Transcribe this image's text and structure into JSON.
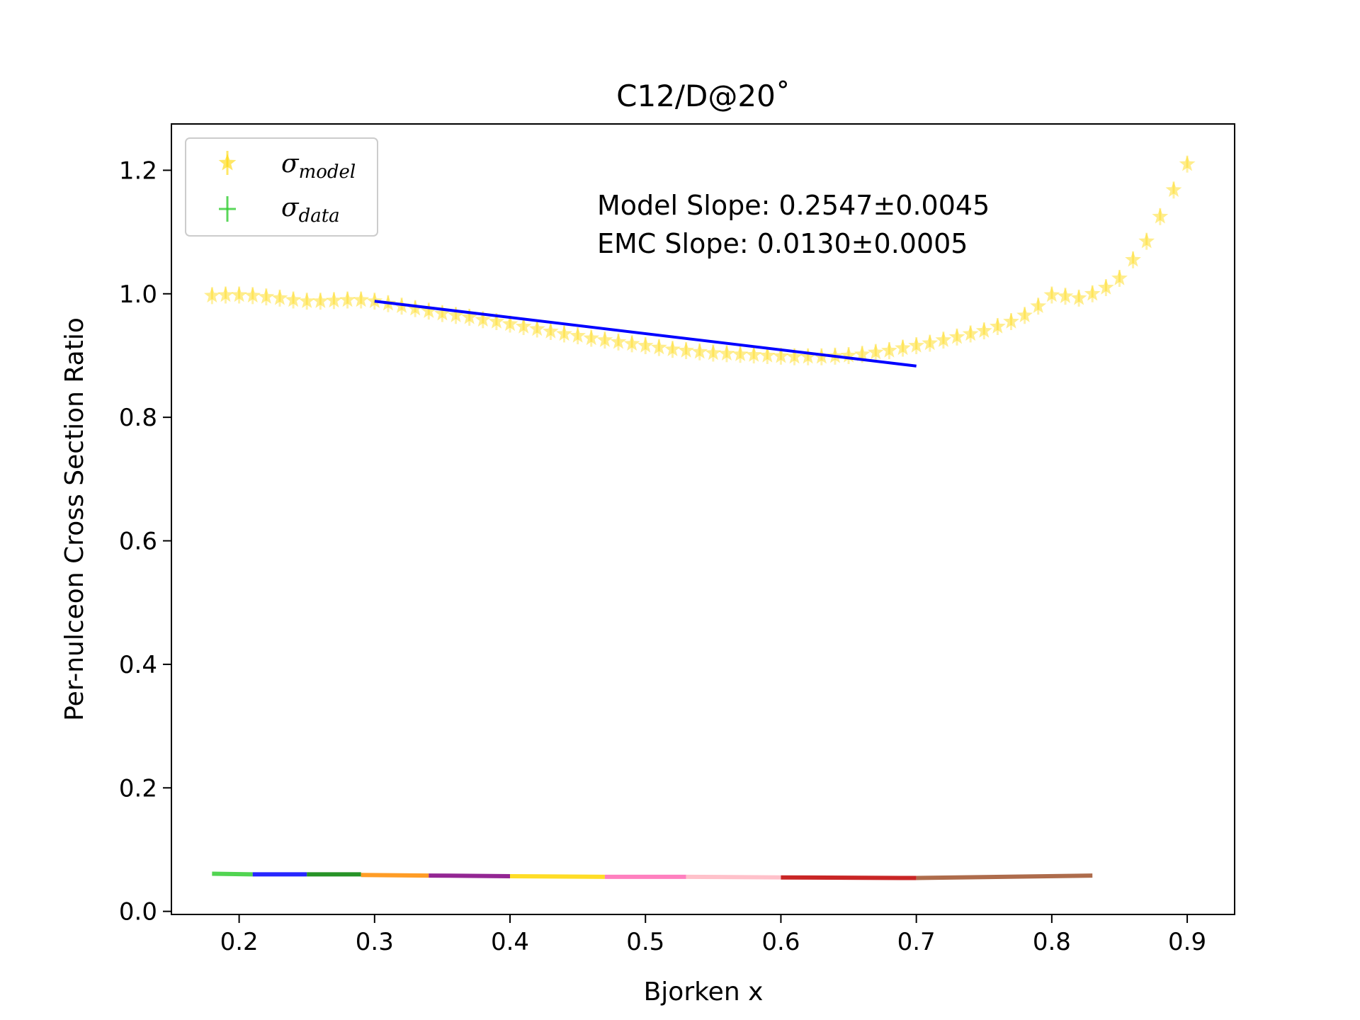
{
  "chart_data": {
    "type": "scatter",
    "title": "C12/D@20˚",
    "xlabel": "Bjorken x",
    "ylabel": "Per-nulceon Cross Section Ratio",
    "xlim": [
      0.15,
      0.935
    ],
    "ylim": [
      -0.005,
      1.275
    ],
    "xticks": [
      0.2,
      0.3,
      0.4,
      0.5,
      0.6,
      0.7,
      0.8,
      0.9
    ],
    "xtick_labels": [
      "0.2",
      "0.3",
      "0.4",
      "0.5",
      "0.6",
      "0.7",
      "0.8",
      "0.9"
    ],
    "yticks": [
      0.0,
      0.2,
      0.4,
      0.6,
      0.8,
      1.0,
      1.2
    ],
    "ytick_labels": [
      "0.0",
      "0.2",
      "0.4",
      "0.6",
      "0.8",
      "1.0",
      "1.2"
    ],
    "legend": {
      "position": "top-left",
      "entries": [
        {
          "symbol": "σ",
          "subscript": "model",
          "color": "#ffd700"
        },
        {
          "symbol": "σ",
          "subscript": "data",
          "color": "#32cd32"
        }
      ]
    },
    "annotations": [
      "Model Slope: 0.2547±0.0045",
      "EMC Slope: 0.0130±0.0005"
    ],
    "model_series": {
      "color": "#ffd700",
      "marker": "star",
      "x": [
        0.18,
        0.19,
        0.2,
        0.21,
        0.22,
        0.23,
        0.24,
        0.25,
        0.26,
        0.27,
        0.28,
        0.29,
        0.3,
        0.31,
        0.32,
        0.33,
        0.34,
        0.35,
        0.36,
        0.37,
        0.38,
        0.39,
        0.4,
        0.41,
        0.42,
        0.43,
        0.44,
        0.45,
        0.46,
        0.47,
        0.48,
        0.49,
        0.5,
        0.51,
        0.52,
        0.53,
        0.54,
        0.55,
        0.56,
        0.57,
        0.58,
        0.59,
        0.6,
        0.61,
        0.62,
        0.63,
        0.64,
        0.65,
        0.66,
        0.67,
        0.68,
        0.69,
        0.7,
        0.71,
        0.72,
        0.73,
        0.74,
        0.75,
        0.76,
        0.77,
        0.78,
        0.79,
        0.8,
        0.81,
        0.82,
        0.83,
        0.84,
        0.85,
        0.86,
        0.87,
        0.88,
        0.89,
        0.9
      ],
      "y": [
        0.997,
        0.998,
        0.998,
        0.997,
        0.995,
        0.993,
        0.99,
        0.988,
        0.988,
        0.989,
        0.99,
        0.99,
        0.988,
        0.984,
        0.98,
        0.976,
        0.972,
        0.968,
        0.965,
        0.962,
        0.958,
        0.955,
        0.951,
        0.947,
        0.943,
        0.939,
        0.935,
        0.932,
        0.928,
        0.925,
        0.922,
        0.919,
        0.916,
        0.913,
        0.91,
        0.908,
        0.906,
        0.904,
        0.903,
        0.902,
        0.901,
        0.9,
        0.899,
        0.898,
        0.898,
        0.898,
        0.899,
        0.9,
        0.902,
        0.905,
        0.908,
        0.912,
        0.916,
        0.92,
        0.925,
        0.93,
        0.935,
        0.94,
        0.947,
        0.955,
        0.965,
        0.98,
        0.998,
        0.996,
        0.993,
        1.0,
        1.01,
        1.025,
        1.055,
        1.085,
        1.125,
        1.168,
        1.21
      ]
    },
    "fit_line": {
      "color": "#0000ff",
      "x": [
        0.3,
        0.7
      ],
      "y": [
        0.988,
        0.883
      ]
    },
    "emc_segments": [
      {
        "color": "#32cd32",
        "x": [
          0.18,
          0.21
        ],
        "y": [
          0.061,
          0.06
        ]
      },
      {
        "color": "#0000ff",
        "x": [
          0.21,
          0.25
        ],
        "y": [
          0.06,
          0.06
        ]
      },
      {
        "color": "#008000",
        "x": [
          0.25,
          0.29
        ],
        "y": [
          0.06,
          0.06
        ]
      },
      {
        "color": "#ff8c00",
        "x": [
          0.29,
          0.34
        ],
        "y": [
          0.059,
          0.058
        ]
      },
      {
        "color": "#800080",
        "x": [
          0.34,
          0.4
        ],
        "y": [
          0.058,
          0.057
        ]
      },
      {
        "color": "#ffd700",
        "x": [
          0.4,
          0.47
        ],
        "y": [
          0.057,
          0.056
        ]
      },
      {
        "color": "#ff69b4",
        "x": [
          0.47,
          0.53
        ],
        "y": [
          0.056,
          0.056
        ]
      },
      {
        "color": "#ffb6c1",
        "x": [
          0.53,
          0.6
        ],
        "y": [
          0.056,
          0.055
        ]
      },
      {
        "color": "#c00000",
        "x": [
          0.6,
          0.7
        ],
        "y": [
          0.055,
          0.054
        ]
      },
      {
        "color": "#a0522d",
        "x": [
          0.7,
          0.83
        ],
        "y": [
          0.054,
          0.058
        ]
      }
    ]
  }
}
